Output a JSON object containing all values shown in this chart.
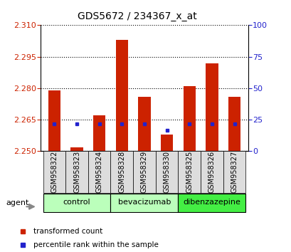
{
  "title": "GDS5672 / 234367_x_at",
  "samples": [
    "GSM958322",
    "GSM958323",
    "GSM958324",
    "GSM958328",
    "GSM958329",
    "GSM958330",
    "GSM958325",
    "GSM958326",
    "GSM958327"
  ],
  "transformed_counts": [
    2.279,
    2.252,
    2.267,
    2.303,
    2.276,
    2.258,
    2.281,
    2.292,
    2.276
  ],
  "percentile_values_left": [
    2.263,
    2.263,
    2.263,
    2.263,
    2.263,
    2.26,
    2.263,
    2.263,
    2.263
  ],
  "base_value": 2.25,
  "ylim_left": [
    2.25,
    2.31
  ],
  "ylim_right": [
    0,
    100
  ],
  "yticks_left": [
    2.25,
    2.265,
    2.28,
    2.295,
    2.31
  ],
  "yticks_right": [
    0,
    25,
    50,
    75,
    100
  ],
  "groups": [
    {
      "label": "control",
      "indices": [
        0,
        1,
        2
      ],
      "color": "#bbffbb"
    },
    {
      "label": "bevacizumab",
      "indices": [
        3,
        4,
        5
      ],
      "color": "#bbffbb"
    },
    {
      "label": "dibenzazepine",
      "indices": [
        6,
        7,
        8
      ],
      "color": "#44ee44"
    }
  ],
  "bar_color": "#cc2200",
  "percentile_color": "#2222cc",
  "bar_width": 0.55,
  "background_color": "#ffffff",
  "plot_bg_color": "#ffffff",
  "tick_label_color_left": "#cc2200",
  "tick_label_color_right": "#2222cc",
  "grid_linestyle": "dotted",
  "agent_label": "agent",
  "legend_items": [
    {
      "label": "transformed count",
      "color": "#cc2200"
    },
    {
      "label": "percentile rank within the sample",
      "color": "#2222cc"
    }
  ],
  "xticklabel_bg": "#dddddd",
  "xticklabel_fontsize": 7,
  "yticklabel_fontsize": 8
}
